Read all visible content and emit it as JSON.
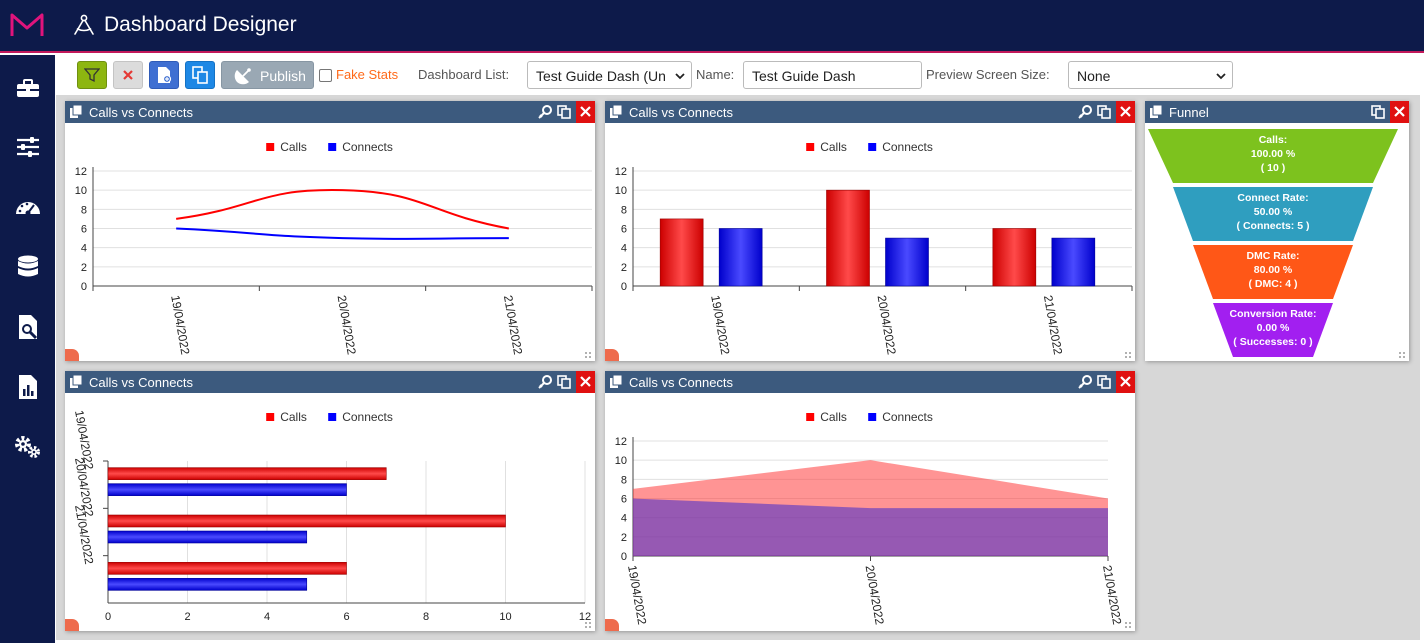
{
  "app": {
    "title": "Dashboard Designer"
  },
  "sidebar": {
    "items": [
      {
        "name": "toolbox"
      },
      {
        "name": "sliders"
      },
      {
        "name": "speedometer"
      },
      {
        "name": "database"
      },
      {
        "name": "report-search"
      },
      {
        "name": "report-chart"
      },
      {
        "name": "settings"
      }
    ]
  },
  "toolbar": {
    "publish_label": "Publish",
    "fake_stats_label": "Fake Stats",
    "dashboard_list_label": "Dashboard List:",
    "dashboard_list_value": "Test Guide Dash (Un",
    "name_label": "Name:",
    "name_value": "Test Guide Dash",
    "preview_label": "Preview Screen Size:",
    "preview_value": "None"
  },
  "colors": {
    "header": "#0d1a4a",
    "accent": "#c2185b",
    "panel_header": "#3c5a7e",
    "calls": "#ff0000",
    "connects": "#0000ff"
  },
  "panels": {
    "p1": {
      "title": "Calls vs Connects"
    },
    "p2": {
      "title": "Calls vs Connects"
    },
    "p3": {
      "title": "Funnel"
    },
    "p4": {
      "title": "Calls vs Connects"
    },
    "p5": {
      "title": "Calls vs Connects"
    }
  },
  "chart_data": [
    {
      "type": "line",
      "x": [
        "19/04/2022",
        "20/04/2022",
        "21/04/2022"
      ],
      "series": [
        {
          "name": "Calls",
          "values": [
            7,
            10,
            6
          ]
        },
        {
          "name": "Connects",
          "values": [
            6,
            5,
            5
          ]
        }
      ],
      "ylim": [
        0,
        12
      ],
      "yticks": [
        0,
        2,
        4,
        6,
        8,
        10,
        12
      ],
      "legend": "top"
    },
    {
      "type": "bar",
      "categories": [
        "19/04/2022",
        "20/04/2022",
        "21/04/2022"
      ],
      "series": [
        {
          "name": "Calls",
          "values": [
            7,
            10,
            6
          ]
        },
        {
          "name": "Connects",
          "values": [
            6,
            5,
            5
          ]
        }
      ],
      "ylim": [
        0,
        12
      ],
      "yticks": [
        0,
        2,
        4,
        6,
        8,
        10,
        12
      ],
      "legend": "top"
    },
    {
      "type": "funnel",
      "stages": [
        {
          "lines": [
            "Calls:",
            "100.00 %",
            "( 10 )"
          ]
        },
        {
          "lines": [
            "Connect Rate:",
            "50.00 %",
            "( Connects: 5 )"
          ]
        },
        {
          "lines": [
            "DMC Rate:",
            "80.00 %",
            "( DMC: 4 )"
          ]
        },
        {
          "lines": [
            "Conversion Rate:",
            "0.00 %",
            "( Successes: 0 )"
          ]
        }
      ],
      "values": [
        100,
        50,
        80,
        0
      ],
      "colors": [
        "#7dc21e",
        "#2f9ebf",
        "#ff5717",
        "#a21ff0"
      ]
    },
    {
      "type": "bar",
      "orientation": "horizontal",
      "categories": [
        "19/04/2022",
        "20/04/2022",
        "21/04/2022"
      ],
      "series": [
        {
          "name": "Calls",
          "values": [
            7,
            10,
            6
          ]
        },
        {
          "name": "Connects",
          "values": [
            6,
            5,
            5
          ]
        }
      ],
      "xlim": [
        0,
        12
      ],
      "xticks": [
        0,
        2,
        4,
        6,
        8,
        10,
        12
      ],
      "legend": "top"
    },
    {
      "type": "area",
      "x": [
        "19/04/2022",
        "20/04/2022",
        "21/04/2022"
      ],
      "series": [
        {
          "name": "Calls",
          "values": [
            7,
            10,
            6
          ]
        },
        {
          "name": "Connects",
          "values": [
            6,
            5,
            5
          ]
        }
      ],
      "ylim": [
        0,
        12
      ],
      "yticks": [
        0,
        2,
        4,
        6,
        8,
        10,
        12
      ],
      "legend": "top"
    }
  ]
}
